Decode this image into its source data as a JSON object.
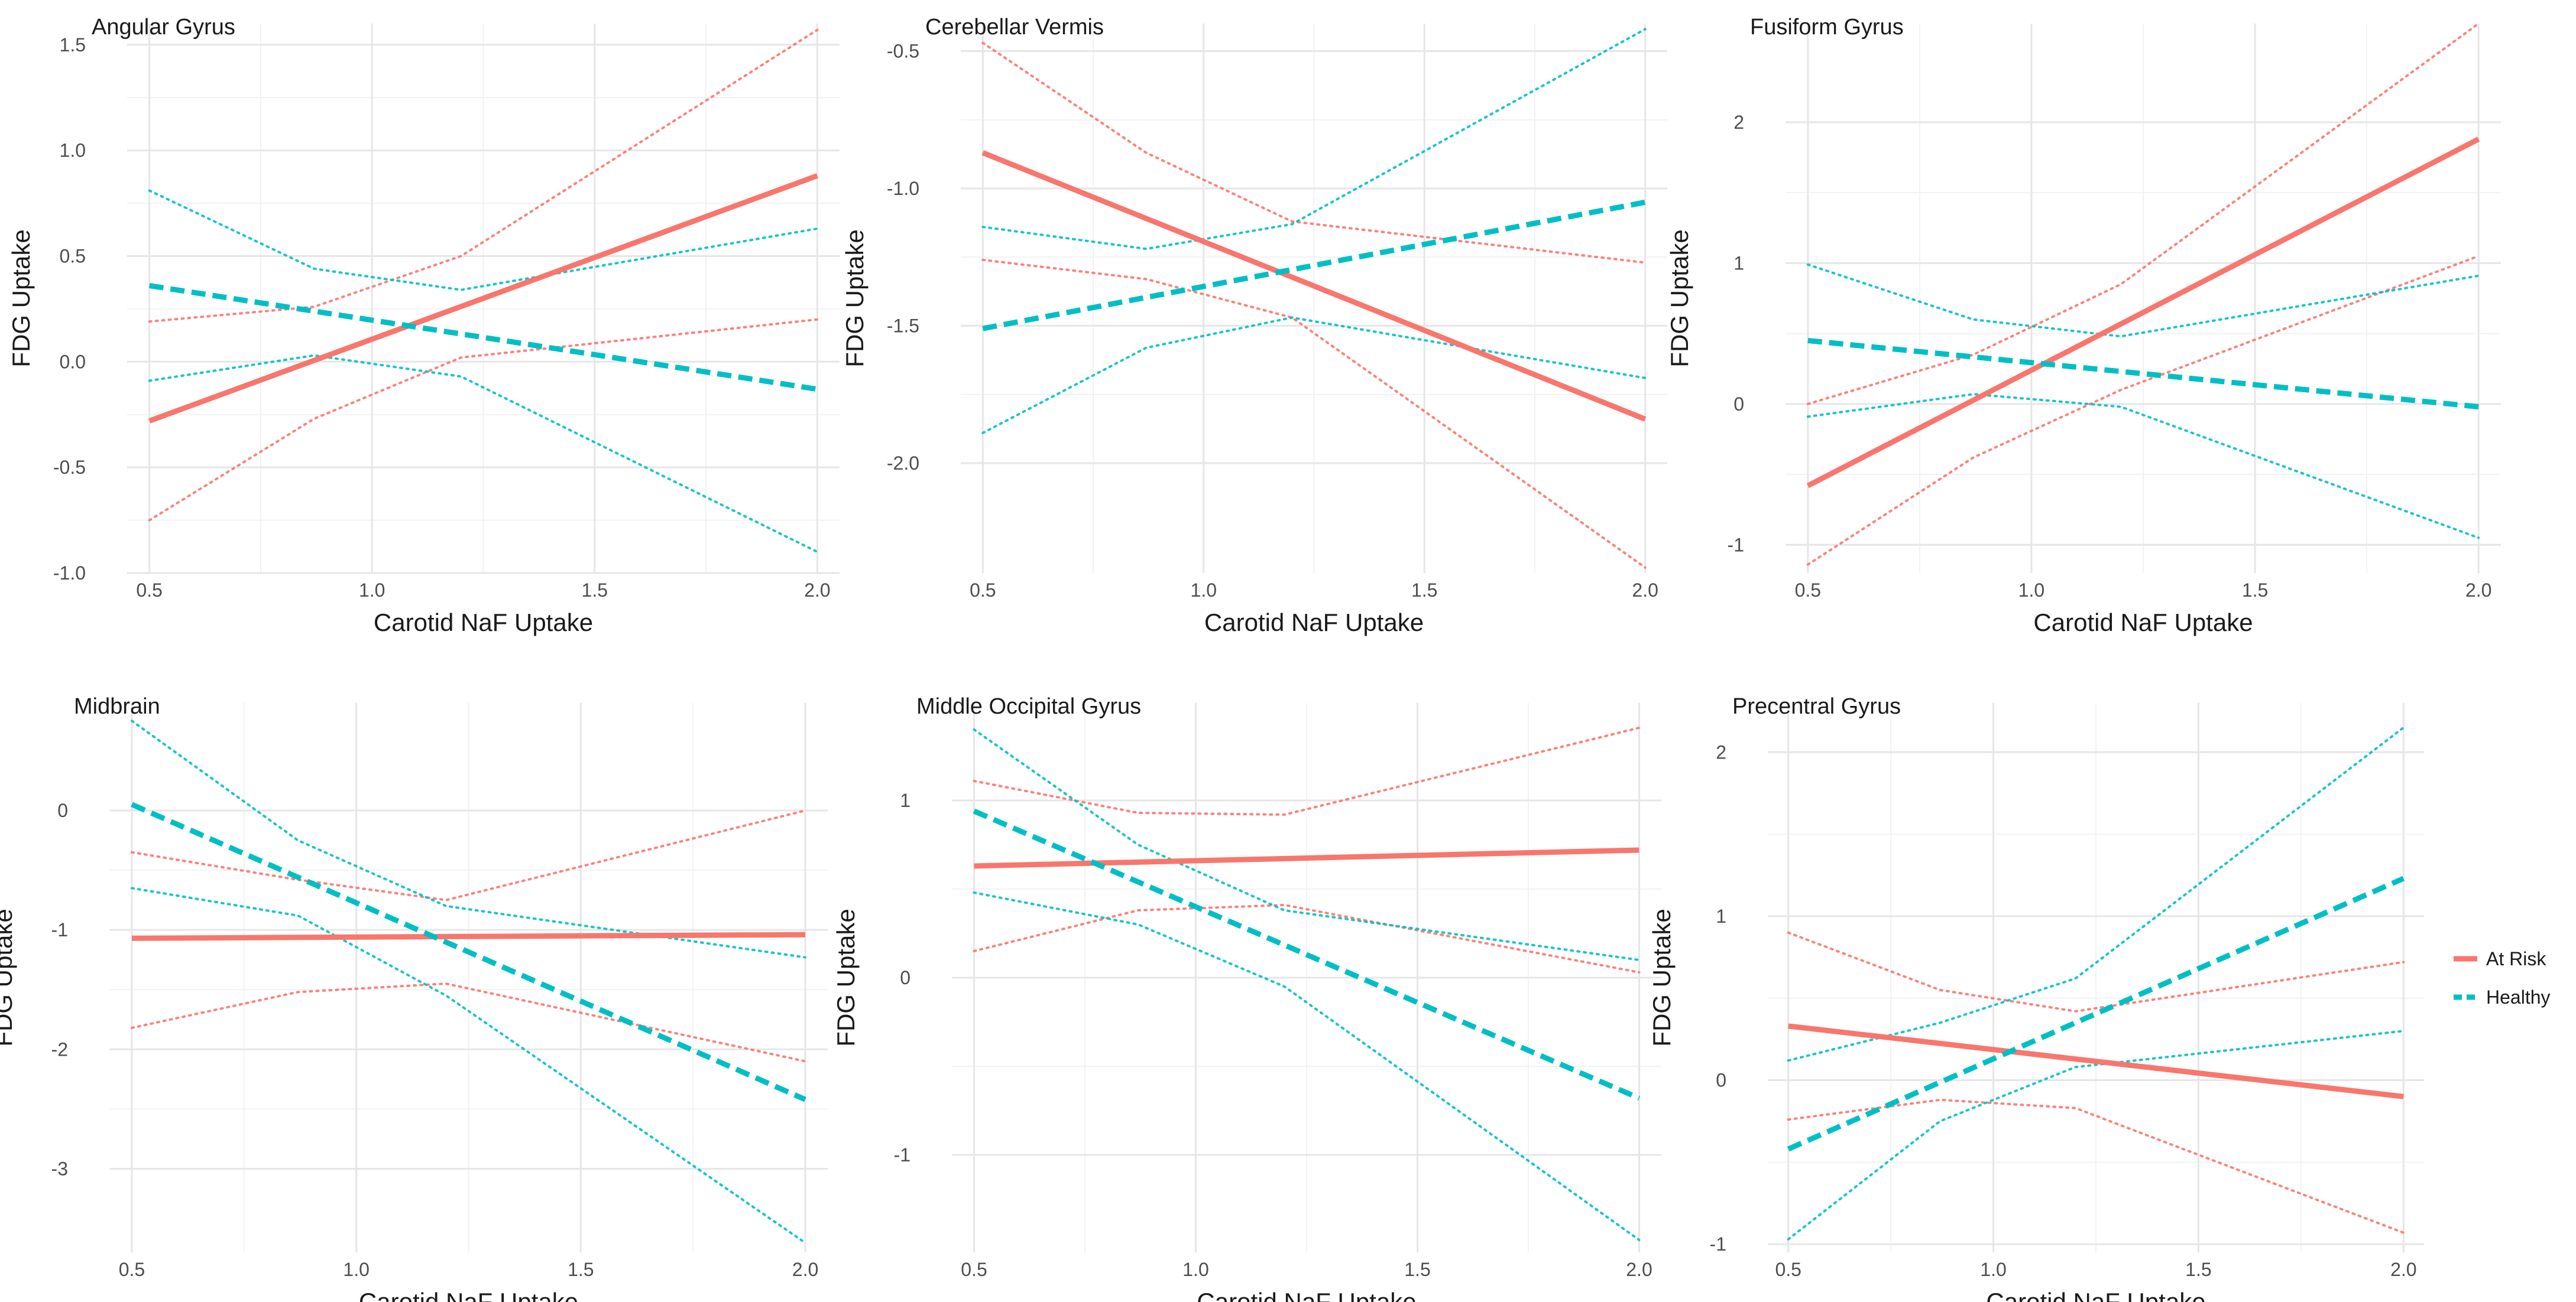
{
  "legend": {
    "items": [
      {
        "label": "At Risk",
        "color": "#F8766D",
        "style": "solid"
      },
      {
        "label": "Healthy",
        "color": "#00BFC4",
        "style": "dashed"
      }
    ]
  },
  "colors": {
    "at_risk": "#F8766D",
    "healthy": "#00BFC4",
    "grid_major": "#E6E6E6",
    "grid_minor": "#F2F2F2",
    "text": "#1A1A1A",
    "tick_text": "#4D4D4D"
  },
  "chart_data": [
    {
      "type": "line",
      "title": "Angular Gyrus",
      "xlabel": "Carotid NaF Uptake",
      "ylabel": "FDG Uptake",
      "xlim": [
        0.45,
        2.05
      ],
      "ylim": [
        -1.0,
        1.6
      ],
      "xticks": [
        0.5,
        1.0,
        1.5,
        2.0
      ],
      "xtick_labels": [
        "0.5",
        "1.0",
        "1.5",
        "2.0"
      ],
      "yticks": [
        -1.0,
        -0.5,
        0.0,
        0.5,
        1.0,
        1.5
      ],
      "ytick_labels": [
        "-1.0",
        "-0.5",
        "0.0",
        "0.5",
        "1.0",
        "1.5"
      ],
      "series": [
        {
          "name": "At Risk",
          "group": "at_risk",
          "role": "fit",
          "x": [
            0.5,
            2.0
          ],
          "y": [
            -0.28,
            0.88
          ]
        },
        {
          "name": "At Risk",
          "group": "at_risk",
          "role": "ci",
          "x": [
            0.5,
            0.87,
            1.2,
            2.0
          ],
          "y": [
            0.19,
            0.26,
            0.5,
            1.57
          ]
        },
        {
          "name": "At Risk",
          "group": "at_risk",
          "role": "ci",
          "x": [
            0.5,
            0.87,
            1.2,
            2.0
          ],
          "y": [
            -0.75,
            -0.27,
            0.02,
            0.2
          ]
        },
        {
          "name": "Healthy",
          "group": "healthy",
          "role": "fit",
          "x": [
            0.5,
            2.0
          ],
          "y": [
            0.36,
            -0.13
          ]
        },
        {
          "name": "Healthy",
          "group": "healthy",
          "role": "ci",
          "x": [
            0.5,
            0.87,
            1.2,
            2.0
          ],
          "y": [
            0.81,
            0.44,
            0.34,
            0.63
          ]
        },
        {
          "name": "Healthy",
          "group": "healthy",
          "role": "ci",
          "x": [
            0.5,
            0.87,
            1.2,
            2.0
          ],
          "y": [
            -0.09,
            0.03,
            -0.07,
            -0.9
          ]
        }
      ]
    },
    {
      "type": "line",
      "title": "Cerebellar Vermis",
      "xlabel": "Carotid NaF Uptake",
      "ylabel": "FDG Uptake",
      "xlim": [
        0.45,
        2.05
      ],
      "ylim": [
        -2.4,
        -0.4
      ],
      "xticks": [
        0.5,
        1.0,
        1.5,
        2.0
      ],
      "xtick_labels": [
        "0.5",
        "1.0",
        "1.5",
        "2.0"
      ],
      "yticks": [
        -2.0,
        -1.5,
        -1.0,
        -0.5
      ],
      "ytick_labels": [
        "-2.0",
        "-1.5",
        "-1.0",
        "-0.5"
      ],
      "series": [
        {
          "name": "At Risk",
          "group": "at_risk",
          "role": "fit",
          "x": [
            0.5,
            2.0
          ],
          "y": [
            -0.87,
            -1.84
          ]
        },
        {
          "name": "At Risk",
          "group": "at_risk",
          "role": "ci",
          "x": [
            0.5,
            0.87,
            1.2,
            2.0
          ],
          "y": [
            -0.47,
            -0.87,
            -1.12,
            -1.27
          ]
        },
        {
          "name": "At Risk",
          "group": "at_risk",
          "role": "ci",
          "x": [
            0.5,
            0.87,
            1.2,
            2.0
          ],
          "y": [
            -1.26,
            -1.33,
            -1.47,
            -2.38
          ]
        },
        {
          "name": "Healthy",
          "group": "healthy",
          "role": "fit",
          "x": [
            0.5,
            2.0
          ],
          "y": [
            -1.51,
            -1.05
          ]
        },
        {
          "name": "Healthy",
          "group": "healthy",
          "role": "ci",
          "x": [
            0.5,
            0.87,
            1.2,
            2.0
          ],
          "y": [
            -1.14,
            -1.22,
            -1.13,
            -0.42
          ]
        },
        {
          "name": "Healthy",
          "group": "healthy",
          "role": "ci",
          "x": [
            0.5,
            0.87,
            1.2,
            2.0
          ],
          "y": [
            -1.89,
            -1.58,
            -1.47,
            -1.69
          ]
        }
      ]
    },
    {
      "type": "line",
      "title": "Fusiform Gyrus",
      "xlabel": "Carotid NaF Uptake",
      "ylabel": "FDG Uptake",
      "xlim": [
        0.45,
        2.05
      ],
      "ylim": [
        -1.2,
        2.7
      ],
      "xticks": [
        0.5,
        1.0,
        1.5,
        2.0
      ],
      "xtick_labels": [
        "0.5",
        "1.0",
        "1.5",
        "2.0"
      ],
      "yticks": [
        -1,
        0,
        1,
        2
      ],
      "ytick_labels": [
        "-1",
        "0",
        "1",
        "2"
      ],
      "series": [
        {
          "name": "At Risk",
          "group": "at_risk",
          "role": "fit",
          "x": [
            0.5,
            2.0
          ],
          "y": [
            -0.58,
            1.88
          ]
        },
        {
          "name": "At Risk",
          "group": "at_risk",
          "role": "ci",
          "x": [
            0.5,
            0.87,
            1.2,
            2.0
          ],
          "y": [
            0.0,
            0.35,
            0.85,
            2.7
          ]
        },
        {
          "name": "At Risk",
          "group": "at_risk",
          "role": "ci",
          "x": [
            0.5,
            0.87,
            1.2,
            2.0
          ],
          "y": [
            -1.14,
            -0.38,
            0.1,
            1.05
          ]
        },
        {
          "name": "Healthy",
          "group": "healthy",
          "role": "fit",
          "x": [
            0.5,
            2.0
          ],
          "y": [
            0.45,
            -0.02
          ]
        },
        {
          "name": "Healthy",
          "group": "healthy",
          "role": "ci",
          "x": [
            0.5,
            0.87,
            1.2,
            2.0
          ],
          "y": [
            0.99,
            0.6,
            0.48,
            0.91
          ]
        },
        {
          "name": "Healthy",
          "group": "healthy",
          "role": "ci",
          "x": [
            0.5,
            0.87,
            1.2,
            2.0
          ],
          "y": [
            -0.09,
            0.07,
            -0.02,
            -0.95
          ]
        }
      ]
    },
    {
      "type": "line",
      "title": "Midbrain",
      "xlabel": "Carotid NaF Uptake",
      "ylabel": "FDG Uptake",
      "xlim": [
        0.45,
        2.05
      ],
      "ylim": [
        -3.7,
        0.9
      ],
      "xticks": [
        0.5,
        1.0,
        1.5,
        2.0
      ],
      "xtick_labels": [
        "0.5",
        "1.0",
        "1.5",
        "2.0"
      ],
      "yticks": [
        -3,
        -2,
        -1,
        0
      ],
      "ytick_labels": [
        "-3",
        "-2",
        "-1",
        "0"
      ],
      "series": [
        {
          "name": "At Risk",
          "group": "at_risk",
          "role": "fit",
          "x": [
            0.5,
            2.0
          ],
          "y": [
            -1.07,
            -1.04
          ]
        },
        {
          "name": "At Risk",
          "group": "at_risk",
          "role": "ci",
          "x": [
            0.5,
            0.87,
            1.2,
            2.0
          ],
          "y": [
            -0.35,
            -0.58,
            -0.75,
            0.0
          ]
        },
        {
          "name": "At Risk",
          "group": "at_risk",
          "role": "ci",
          "x": [
            0.5,
            0.87,
            1.2,
            2.0
          ],
          "y": [
            -1.82,
            -1.52,
            -1.45,
            -2.1
          ]
        },
        {
          "name": "Healthy",
          "group": "healthy",
          "role": "fit",
          "x": [
            0.5,
            2.0
          ],
          "y": [
            0.05,
            -2.42
          ]
        },
        {
          "name": "Healthy",
          "group": "healthy",
          "role": "ci",
          "x": [
            0.5,
            0.87,
            1.2,
            2.0
          ],
          "y": [
            0.75,
            -0.25,
            -0.8,
            -1.23
          ]
        },
        {
          "name": "Healthy",
          "group": "healthy",
          "role": "ci",
          "x": [
            0.5,
            0.87,
            1.2,
            2.0
          ],
          "y": [
            -0.65,
            -0.88,
            -1.55,
            -3.62
          ]
        }
      ]
    },
    {
      "type": "line",
      "title": "Middle Occipital Gyrus",
      "xlabel": "Carotid NaF Uptake",
      "ylabel": "FDG Uptake",
      "xlim": [
        0.45,
        2.05
      ],
      "ylim": [
        -1.55,
        1.55
      ],
      "xticks": [
        0.5,
        1.0,
        1.5,
        2.0
      ],
      "xtick_labels": [
        "0.5",
        "1.0",
        "1.5",
        "2.0"
      ],
      "yticks": [
        -1,
        0,
        1
      ],
      "ytick_labels": [
        "-1",
        "0",
        "1"
      ],
      "series": [
        {
          "name": "At Risk",
          "group": "at_risk",
          "role": "fit",
          "x": [
            0.5,
            2.0
          ],
          "y": [
            0.63,
            0.72
          ]
        },
        {
          "name": "At Risk",
          "group": "at_risk",
          "role": "ci",
          "x": [
            0.5,
            0.87,
            1.2,
            2.0
          ],
          "y": [
            1.11,
            0.93,
            0.92,
            1.41
          ]
        },
        {
          "name": "At Risk",
          "group": "at_risk",
          "role": "ci",
          "x": [
            0.5,
            0.87,
            1.2,
            2.0
          ],
          "y": [
            0.15,
            0.38,
            0.41,
            0.03
          ]
        },
        {
          "name": "Healthy",
          "group": "healthy",
          "role": "fit",
          "x": [
            0.5,
            2.0
          ],
          "y": [
            0.94,
            -0.68
          ]
        },
        {
          "name": "Healthy",
          "group": "healthy",
          "role": "ci",
          "x": [
            0.5,
            0.87,
            1.2,
            2.0
          ],
          "y": [
            1.4,
            0.75,
            0.38,
            0.1
          ]
        },
        {
          "name": "Healthy",
          "group": "healthy",
          "role": "ci",
          "x": [
            0.5,
            0.87,
            1.2,
            2.0
          ],
          "y": [
            0.48,
            0.3,
            -0.05,
            -1.48
          ]
        }
      ]
    },
    {
      "type": "line",
      "title": "Precentral Gyrus",
      "xlabel": "Carotid NaF Uptake",
      "ylabel": "FDG Uptake",
      "xlim": [
        0.45,
        2.05
      ],
      "ylim": [
        -1.05,
        2.3
      ],
      "xticks": [
        0.5,
        1.0,
        1.5,
        2.0
      ],
      "xtick_labels": [
        "0.5",
        "1.0",
        "1.5",
        "2.0"
      ],
      "yticks": [
        -1,
        0,
        1,
        2
      ],
      "ytick_labels": [
        "-1",
        "0",
        "1",
        "2"
      ],
      "series": [
        {
          "name": "At Risk",
          "group": "at_risk",
          "role": "fit",
          "x": [
            0.5,
            2.0
          ],
          "y": [
            0.33,
            -0.1
          ]
        },
        {
          "name": "At Risk",
          "group": "at_risk",
          "role": "ci",
          "x": [
            0.5,
            0.87,
            1.2,
            2.0
          ],
          "y": [
            0.9,
            0.55,
            0.42,
            0.72
          ]
        },
        {
          "name": "At Risk",
          "group": "at_risk",
          "role": "ci",
          "x": [
            0.5,
            0.87,
            1.2,
            2.0
          ],
          "y": [
            -0.24,
            -0.12,
            -0.17,
            -0.93
          ]
        },
        {
          "name": "Healthy",
          "group": "healthy",
          "role": "fit",
          "x": [
            0.5,
            2.0
          ],
          "y": [
            -0.42,
            1.23
          ]
        },
        {
          "name": "Healthy",
          "group": "healthy",
          "role": "ci",
          "x": [
            0.5,
            0.87,
            1.2,
            2.0
          ],
          "y": [
            0.12,
            0.35,
            0.62,
            2.15
          ]
        },
        {
          "name": "Healthy",
          "group": "healthy",
          "role": "ci",
          "x": [
            0.5,
            0.87,
            1.2,
            2.0
          ],
          "y": [
            -0.97,
            -0.25,
            0.08,
            0.3
          ]
        }
      ]
    }
  ]
}
